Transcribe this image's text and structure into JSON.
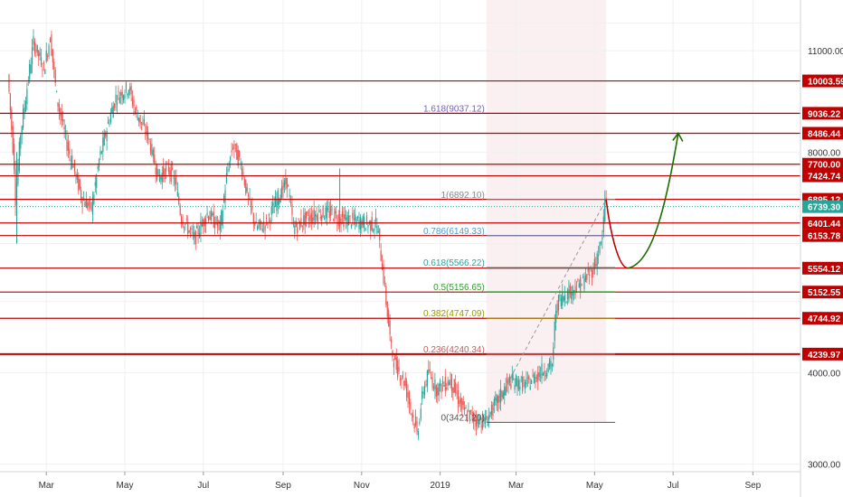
{
  "chart_data": {
    "type": "candlestick",
    "title": "",
    "xlabel": "",
    "ylabel": "",
    "ylim": [
      3000,
      12000
    ],
    "y_scale": "log",
    "grid": true,
    "colors": {
      "up": "#26a69a",
      "down": "#ef5350",
      "level_line": "#c00000",
      "badge": "#c00000",
      "current_badge": "#26a69a",
      "projection_down": "#c00000",
      "projection_up": "#1e6b00",
      "fib_zone": "#f7e3e6"
    },
    "x_ticks": [
      {
        "label": "Mar",
        "date": "2018-03-01"
      },
      {
        "label": "May",
        "date": "2018-05-01"
      },
      {
        "label": "Jul",
        "date": "2018-07-01"
      },
      {
        "label": "Sep",
        "date": "2018-09-01"
      },
      {
        "label": "Nov",
        "date": "2018-11-01"
      },
      {
        "label": "2019",
        "date": "2019-01-01"
      },
      {
        "label": "Mar",
        "date": "2019-03-01"
      },
      {
        "label": "May",
        "date": "2019-05-01"
      },
      {
        "label": "Jul",
        "date": "2019-07-01"
      },
      {
        "label": "Sep",
        "date": "2019-09-01"
      }
    ],
    "y_ticks": [
      {
        "label": "11000.00",
        "value": 11000
      },
      {
        "label": "8000.00",
        "value": 8000
      },
      {
        "label": "4000.00",
        "value": 4000
      },
      {
        "label": "3000.00",
        "value": 3000
      }
    ],
    "horizontal_levels": [
      {
        "value": 10003.59,
        "label": "10003.59"
      },
      {
        "value": 9036.22,
        "label": "9036.22"
      },
      {
        "value": 8486.44,
        "label": "8486.44"
      },
      {
        "value": 7700.0,
        "label": "7700.00"
      },
      {
        "value": 7424.74,
        "label": "7424.74"
      },
      {
        "value": 6895.12,
        "label": "6895.12"
      },
      {
        "value": 6401.44,
        "label": "6401.44"
      },
      {
        "value": 6153.78,
        "label": "6153.78"
      },
      {
        "value": 5554.12,
        "label": "5554.12"
      },
      {
        "value": 5152.55,
        "label": "5152.55"
      },
      {
        "value": 4744.92,
        "label": "4744.92"
      },
      {
        "value": 4239.97,
        "label": "4239.97"
      }
    ],
    "current_price": {
      "value": 6739.3,
      "label": "6739.30"
    },
    "fib_retracement": {
      "start_date": "2019-02-06",
      "end_date": "2019-05-10",
      "extend_to_date": "2019-05-17",
      "levels": [
        {
          "ratio": "1.618",
          "value": 9037.12,
          "label": "1.618(9037.12)",
          "color": "#7b5fb3"
        },
        {
          "ratio": "1",
          "value": 6892.1,
          "label": "1(6892.10)",
          "color": "#888888"
        },
        {
          "ratio": "0.786",
          "value": 6149.33,
          "label": "0.786(6149.33)",
          "color": "#4a9fd8"
        },
        {
          "ratio": "0.618",
          "value": 5566.22,
          "label": "0.618(5566.22)",
          "color": "#26a69a"
        },
        {
          "ratio": "0.5",
          "value": 5156.65,
          "label": "0.5(5156.65)",
          "color": "#2e9e2e"
        },
        {
          "ratio": "0.382",
          "value": 4747.09,
          "label": "0.382(4747.09)",
          "color": "#9a9a00"
        },
        {
          "ratio": "0.236",
          "value": 4240.34,
          "label": "0.236(4240.34)",
          "color": "#c06060"
        },
        {
          "ratio": "0",
          "value": 3421.2,
          "label": "0(3421.20)",
          "color": "#555555"
        }
      ]
    },
    "projection": {
      "start": {
        "date": "2019-05-10",
        "value": 6890
      },
      "low": {
        "date": "2019-05-27",
        "value": 5554
      },
      "end": {
        "date": "2019-07-05",
        "value": 8486
      }
    },
    "price_path": [
      [
        "2018-01-31",
        10200
      ],
      [
        "2018-02-05",
        7700
      ],
      [
        "2018-02-06",
        6900
      ],
      [
        "2018-02-10",
        8500
      ],
      [
        "2018-02-20",
        11300
      ],
      [
        "2018-02-28",
        10400
      ],
      [
        "2018-03-05",
        11500
      ],
      [
        "2018-03-10",
        9500
      ],
      [
        "2018-03-18",
        8200
      ],
      [
        "2018-03-30",
        6900
      ],
      [
        "2018-04-06",
        6700
      ],
      [
        "2018-04-12",
        7800
      ],
      [
        "2018-04-20",
        8900
      ],
      [
        "2018-04-25",
        9500
      ],
      [
        "2018-05-05",
        9800
      ],
      [
        "2018-05-10",
        9100
      ],
      [
        "2018-05-20",
        8400
      ],
      [
        "2018-05-28",
        7400
      ],
      [
        "2018-06-05",
        7600
      ],
      [
        "2018-06-10",
        7300
      ],
      [
        "2018-06-15",
        6500
      ],
      [
        "2018-06-25",
        6100
      ],
      [
        "2018-07-05",
        6600
      ],
      [
        "2018-07-15",
        6300
      ],
      [
        "2018-07-20",
        7400
      ],
      [
        "2018-07-25",
        8200
      ],
      [
        "2018-08-01",
        7600
      ],
      [
        "2018-08-05",
        7000
      ],
      [
        "2018-08-12",
        6300
      ],
      [
        "2018-08-20",
        6400
      ],
      [
        "2018-08-30",
        7000
      ],
      [
        "2018-09-05",
        7300
      ],
      [
        "2018-09-10",
        6300
      ],
      [
        "2018-09-20",
        6500
      ],
      [
        "2018-09-30",
        6600
      ],
      [
        "2018-10-10",
        6600
      ],
      [
        "2018-10-15",
        6500
      ],
      [
        "2018-10-25",
        6450
      ],
      [
        "2018-11-05",
        6400
      ],
      [
        "2018-11-14",
        6350
      ],
      [
        "2018-11-18",
        5600
      ],
      [
        "2018-11-25",
        4300
      ],
      [
        "2018-11-28",
        4100
      ],
      [
        "2018-12-05",
        3900
      ],
      [
        "2018-12-15",
        3300
      ],
      [
        "2018-12-20",
        3800
      ],
      [
        "2018-12-24",
        4000
      ],
      [
        "2018-12-30",
        3800
      ],
      [
        "2019-01-10",
        3900
      ],
      [
        "2019-01-20",
        3550
      ],
      [
        "2019-01-30",
        3450
      ],
      [
        "2019-02-06",
        3430
      ],
      [
        "2019-02-15",
        3650
      ],
      [
        "2019-02-25",
        3900
      ],
      [
        "2019-03-10",
        3850
      ],
      [
        "2019-03-20",
        4000
      ],
      [
        "2019-03-30",
        4100
      ],
      [
        "2019-04-02",
        4900
      ],
      [
        "2019-04-05",
        5050
      ],
      [
        "2019-04-12",
        5150
      ],
      [
        "2019-04-22",
        5300
      ],
      [
        "2019-05-01",
        5550
      ],
      [
        "2019-05-08",
        6100
      ],
      [
        "2019-05-10",
        6892
      ]
    ]
  }
}
